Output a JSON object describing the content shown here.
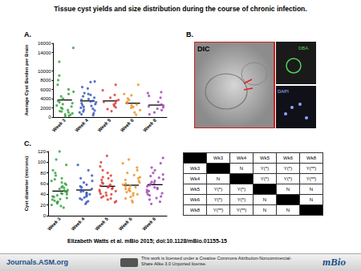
{
  "title": "Tissue cyst yields and size distribution during the course of chronic infection.",
  "chart_data": [
    {
      "type": "scatter",
      "title": "A.",
      "ylabel": "Average Cyst Burden per Brain",
      "categories": [
        "Week 3",
        "Week 4",
        "Week 5",
        "Week 6",
        "Week 8"
      ],
      "colors": [
        "#2f9e3a",
        "#2f4fb5",
        "#d8352f",
        "#e8901f",
        "#9b3fb0"
      ],
      "values": [
        [
          15000,
          12000,
          9000,
          8000,
          7000,
          6000,
          5500,
          5000,
          4500,
          4000,
          3500,
          3200,
          3000,
          2800,
          2500,
          2300,
          2000,
          1800,
          1500,
          1300,
          1200,
          1000,
          800,
          600,
          500,
          300,
          200
        ],
        [
          7700,
          7600,
          6500,
          6200,
          5200,
          5000,
          4800,
          4500,
          4200,
          3900,
          3700,
          3500,
          3400,
          3200,
          3000,
          2800,
          2600,
          2400,
          2200,
          2000,
          1800,
          1600,
          1400,
          1200,
          1000,
          800,
          600,
          400
        ],
        [
          7000,
          5800,
          4800,
          4200,
          3700,
          3500,
          3300,
          3000,
          2700,
          2400,
          2100,
          1700,
          1300
        ],
        [
          7000,
          5000,
          4700,
          4000,
          3700,
          3300,
          3000,
          2700,
          2500,
          2200,
          2000,
          1500,
          1000,
          500
        ],
        [
          5400,
          5200,
          4600,
          4200,
          3300,
          2700,
          2500,
          2300,
          2100,
          1800,
          1500,
          1000,
          600
        ]
      ],
      "means": [
        3700,
        3500,
        3500,
        3000,
        2600
      ],
      "ylim": [
        0,
        16000
      ],
      "yticks": [
        0,
        2000,
        4000,
        6000,
        8000,
        10000,
        14000,
        16000
      ],
      "grid": false
    },
    {
      "type": "scatter",
      "title": "C.",
      "ylabel": "Cyst diameter (microns)",
      "categories": [
        "Week 3",
        "Week 4",
        "Week 5",
        "Week 6",
        "Week 8"
      ],
      "colors": [
        "#2f9e3a",
        "#2f4fb5",
        "#d8352f",
        "#e8901f",
        "#9b3fb0"
      ],
      "values": [
        [
          120,
          105,
          95,
          85,
          80,
          75,
          70,
          68,
          65,
          62,
          60,
          58,
          55,
          53,
          52,
          50,
          48,
          47,
          45,
          44,
          42,
          41,
          40,
          38,
          36,
          35,
          33,
          31,
          30,
          28,
          26,
          25,
          23,
          20,
          18,
          15
        ],
        [
          95,
          85,
          75,
          70,
          65,
          62,
          58,
          55,
          53,
          50,
          48,
          46,
          45,
          43,
          41,
          40,
          38,
          36,
          34,
          32,
          30,
          27,
          25,
          22
        ],
        [
          112,
          100,
          92,
          85,
          80,
          75,
          72,
          70,
          67,
          65,
          62,
          60,
          58,
          56,
          55,
          53,
          52,
          50,
          48,
          46,
          45,
          43,
          41,
          40,
          38,
          36,
          34,
          32,
          30,
          27,
          25
        ],
        [
          105,
          98,
          90,
          85,
          80,
          76,
          72,
          70,
          67,
          65,
          62,
          60,
          58,
          56,
          55,
          53,
          51,
          50,
          48,
          46,
          44,
          42,
          40,
          38,
          35,
          32,
          28,
          25
        ],
        [
          108,
          98,
          90,
          85,
          80,
          77,
          74,
          71,
          68,
          65,
          63,
          61,
          59,
          57,
          55,
          53,
          52,
          50,
          48,
          46,
          44,
          42,
          40,
          38,
          36,
          33,
          30,
          26,
          22
        ]
      ],
      "means": [
        46,
        48,
        55,
        57,
        58
      ],
      "ylim": [
        0,
        120
      ],
      "yticks": [
        0,
        20,
        40,
        60,
        80,
        100,
        120
      ],
      "grid": false
    }
  ],
  "panel_b": {
    "label": "B.",
    "images": [
      "DIC",
      "DBA",
      "DAPI"
    ]
  },
  "table": {
    "header": [
      "Wk3",
      "Wk4",
      "Wk5",
      "Wk6",
      "Wk8"
    ],
    "rows": [
      {
        "label": "Wk3",
        "cells": [
          null,
          "N",
          "Y(*)",
          "Y(*)",
          "Y(**)"
        ]
      },
      {
        "label": "Wk4",
        "cells": [
          "N",
          null,
          "Y(*)",
          "Y(*)",
          "Y(**)"
        ]
      },
      {
        "label": "Wk5",
        "cells": [
          "Y(*)",
          "Y(*)",
          null,
          "N",
          "N"
        ]
      },
      {
        "label": "Wk6",
        "cells": [
          "Y(*)",
          "Y(*)",
          "N",
          null,
          "N"
        ]
      },
      {
        "label": "Wk8",
        "cells": [
          "Y(**)",
          "Y(**)",
          "N",
          "N",
          null
        ]
      }
    ]
  },
  "citation": "Elizabeth Watts et al. mBio 2015; doi:10.1128/mBio.01155-15",
  "footer": {
    "site": "Journals.ASM.org",
    "license": "This work is licensed under a Creative Commons Attribution-Noncommercial-Share Alike 3.0 Unported license.",
    "journal": "mBio"
  }
}
